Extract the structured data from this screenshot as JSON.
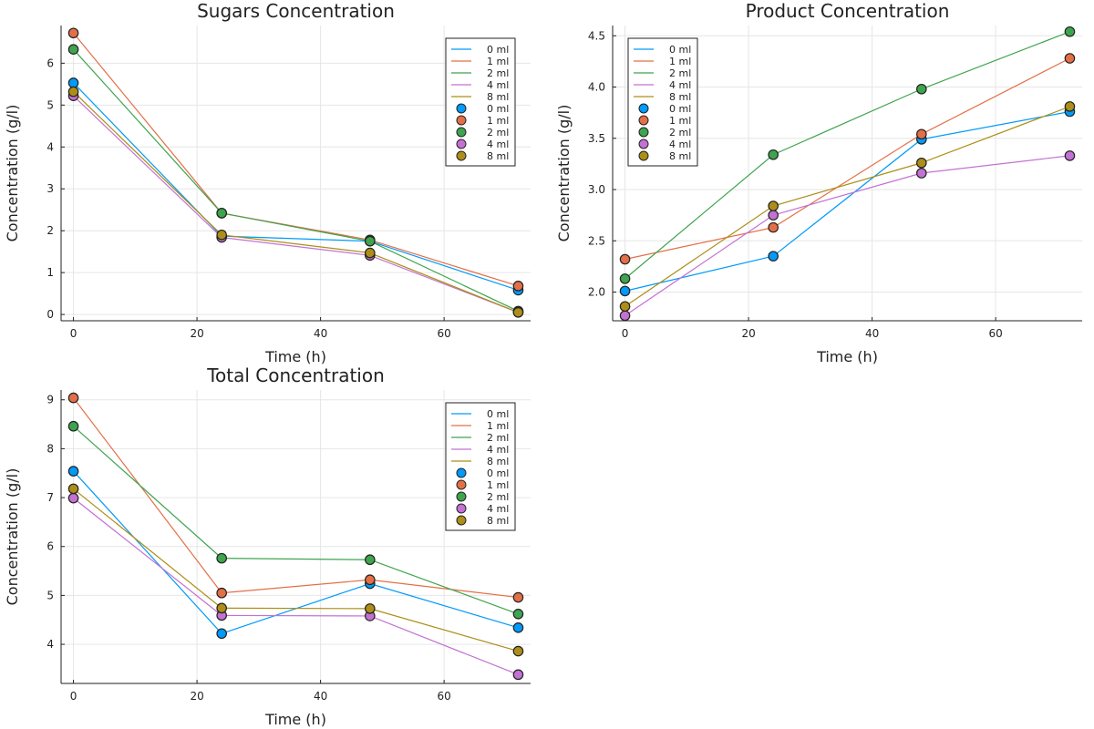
{
  "colors": [
    "#009AFA",
    "#E36F47",
    "#3EA44E",
    "#C371D2",
    "#AC8E18"
  ],
  "chart_data": [
    {
      "type": "line",
      "title": "Sugars Concentration",
      "xlabel": "Time (h)",
      "ylabel": "Concentration (g/l)",
      "x": [
        0,
        24,
        48,
        72
      ],
      "xlim": [
        -2,
        74
      ],
      "ylim": [
        -0.15,
        6.9
      ],
      "xticks": [
        0,
        20,
        40,
        60
      ],
      "yticks": [
        0,
        1,
        2,
        3,
        4,
        5,
        6
      ],
      "grid": true,
      "legend": "top-right",
      "series": [
        {
          "name": "0 ml",
          "values": [
            5.53,
            1.87,
            1.75,
            0.58
          ]
        },
        {
          "name": "1 ml",
          "values": [
            6.72,
            2.42,
            1.78,
            0.68
          ]
        },
        {
          "name": "2 ml",
          "values": [
            6.33,
            2.42,
            1.75,
            0.08
          ]
        },
        {
          "name": "4 ml",
          "values": [
            5.22,
            1.84,
            1.41,
            0.05
          ]
        },
        {
          "name": "8 ml",
          "values": [
            5.32,
            1.9,
            1.47,
            0.05
          ]
        }
      ]
    },
    {
      "type": "line",
      "title": "Product Concentration",
      "xlabel": "Time (h)",
      "ylabel": "Concentration (g/l)",
      "x": [
        0,
        24,
        48,
        72
      ],
      "xlim": [
        -2,
        74
      ],
      "ylim": [
        1.72,
        4.6
      ],
      "xticks": [
        0,
        20,
        40,
        60
      ],
      "yticks": [
        2.0,
        2.5,
        3.0,
        3.5,
        4.0,
        4.5
      ],
      "ytick_labels": [
        "2.0",
        "2.5",
        "3.0",
        "3.5",
        "4.0",
        "4.5"
      ],
      "grid": true,
      "legend": "top-left",
      "series": [
        {
          "name": "0 ml",
          "values": [
            2.01,
            2.35,
            3.49,
            3.76
          ]
        },
        {
          "name": "1 ml",
          "values": [
            2.32,
            2.63,
            3.54,
            4.28
          ]
        },
        {
          "name": "2 ml",
          "values": [
            2.13,
            3.34,
            3.98,
            4.54
          ]
        },
        {
          "name": "4 ml",
          "values": [
            1.77,
            2.75,
            3.16,
            3.33
          ]
        },
        {
          "name": "8 ml",
          "values": [
            1.86,
            2.84,
            3.26,
            3.81
          ]
        }
      ]
    },
    {
      "type": "line",
      "title": "Total Concentration",
      "xlabel": "Time (h)",
      "ylabel": "Concentration (g/l)",
      "x": [
        0,
        24,
        48,
        72
      ],
      "xlim": [
        -2,
        74
      ],
      "ylim": [
        3.2,
        9.2
      ],
      "xticks": [
        0,
        20,
        40,
        60
      ],
      "yticks": [
        4,
        5,
        6,
        7,
        8,
        9
      ],
      "grid": true,
      "legend": "top-right",
      "series": [
        {
          "name": "0 ml",
          "values": [
            7.54,
            4.22,
            5.24,
            4.34
          ]
        },
        {
          "name": "1 ml",
          "values": [
            9.04,
            5.05,
            5.32,
            4.96
          ]
        },
        {
          "name": "2 ml",
          "values": [
            8.46,
            5.76,
            5.73,
            4.62
          ]
        },
        {
          "name": "4 ml",
          "values": [
            6.99,
            4.59,
            4.58,
            3.38
          ]
        },
        {
          "name": "8 ml",
          "values": [
            7.18,
            4.74,
            4.73,
            3.86
          ]
        }
      ]
    }
  ]
}
